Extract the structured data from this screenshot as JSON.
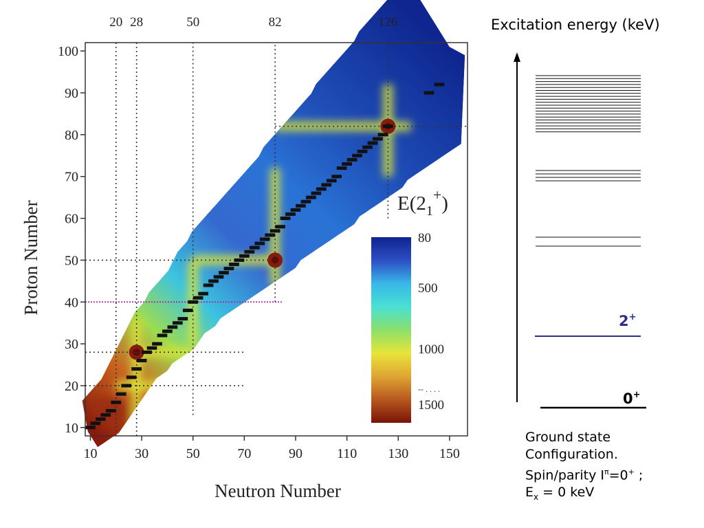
{
  "chart_data": [
    {
      "type": "heatmap",
      "title": "",
      "xlabel": "Neutron Number",
      "ylabel": "Proton Number",
      "xlim": [
        8,
        157
      ],
      "ylim": [
        8,
        102
      ],
      "x_ticks": [
        10,
        30,
        50,
        70,
        90,
        110,
        130,
        150
      ],
      "y_ticks": [
        10,
        20,
        30,
        40,
        50,
        60,
        70,
        80,
        90,
        100
      ],
      "magic_numbers_top": [
        "20",
        "28",
        "50",
        "82",
        "126"
      ],
      "magic_lines": [
        {
          "axis": "x",
          "value": 20,
          "y_range": [
            8,
            102
          ]
        },
        {
          "axis": "x",
          "value": 28,
          "y_range": [
            8,
            102
          ]
        },
        {
          "axis": "x",
          "value": 50,
          "y_range": [
            13,
            102
          ]
        },
        {
          "axis": "x",
          "value": 82,
          "y_range": [
            40,
            102
          ]
        },
        {
          "axis": "x",
          "value": 126,
          "y_range": [
            60,
            102
          ]
        },
        {
          "axis": "y",
          "value": 20,
          "x_range": [
            8,
            70
          ]
        },
        {
          "axis": "y",
          "value": 28,
          "x_range": [
            8,
            70
          ]
        },
        {
          "axis": "y",
          "value": 50,
          "x_range": [
            8,
            82
          ]
        },
        {
          "axis": "y",
          "value": 82,
          "x_range": [
            82,
            157
          ]
        }
      ],
      "highlight_line": {
        "axis": "y",
        "value": 40,
        "x_range": [
          8,
          85
        ],
        "color": "#b0209a"
      },
      "grid": false,
      "colorbar": {
        "title_main": "E(2",
        "title_sub": "1",
        "title_sup": "+",
        "title_end": ")",
        "tick_labels": [
          "80",
          "500",
          "1000",
          "1500"
        ],
        "tick_fractions": [
          0.0,
          0.27,
          0.6,
          0.9
        ],
        "dashed_mark": "-- . . . .",
        "colors": [
          "#10238f",
          "#2d4fc4",
          "#38b7e8",
          "#49e0d4",
          "#8be06a",
          "#e8e43a",
          "#e0a533",
          "#b7581f",
          "#7a1408"
        ]
      },
      "doubly_magic": [
        {
          "x": 28,
          "y": 28
        },
        {
          "x": 82,
          "y": 50
        },
        {
          "x": 126,
          "y": 82
        }
      ],
      "valley_of_stability": [
        [
          10,
          10
        ],
        [
          12,
          11
        ],
        [
          14,
          12
        ],
        [
          16,
          13
        ],
        [
          18,
          14
        ],
        [
          20,
          16
        ],
        [
          22,
          18
        ],
        [
          24,
          20
        ],
        [
          26,
          22
        ],
        [
          28,
          24
        ],
        [
          30,
          26
        ],
        [
          32,
          28
        ],
        [
          34,
          29
        ],
        [
          36,
          30
        ],
        [
          38,
          32
        ],
        [
          40,
          33
        ],
        [
          42,
          34
        ],
        [
          44,
          35
        ],
        [
          46,
          36
        ],
        [
          48,
          38
        ],
        [
          50,
          40
        ],
        [
          52,
          41
        ],
        [
          54,
          42
        ],
        [
          56,
          44
        ],
        [
          58,
          45
        ],
        [
          60,
          46
        ],
        [
          62,
          47
        ],
        [
          64,
          48
        ],
        [
          66,
          49
        ],
        [
          68,
          50
        ],
        [
          70,
          51
        ],
        [
          72,
          52
        ],
        [
          74,
          53
        ],
        [
          76,
          54
        ],
        [
          78,
          55
        ],
        [
          80,
          56
        ],
        [
          82,
          57
        ],
        [
          84,
          58
        ],
        [
          86,
          60
        ],
        [
          88,
          61
        ],
        [
          90,
          62
        ],
        [
          92,
          63
        ],
        [
          94,
          64
        ],
        [
          96,
          65
        ],
        [
          98,
          66
        ],
        [
          100,
          67
        ],
        [
          102,
          68
        ],
        [
          104,
          69
        ],
        [
          106,
          70
        ],
        [
          108,
          72
        ],
        [
          110,
          73
        ],
        [
          112,
          74
        ],
        [
          114,
          75
        ],
        [
          116,
          76
        ],
        [
          118,
          77
        ],
        [
          120,
          78
        ],
        [
          122,
          79
        ],
        [
          124,
          80
        ],
        [
          126,
          82
        ],
        [
          142,
          90
        ],
        [
          146,
          92
        ]
      ]
    },
    {
      "type": "level-scheme",
      "title": "Excitation energy (keV)",
      "ground_state": {
        "label": "0",
        "label_sup": "+",
        "energy": 0
      },
      "first_excited": {
        "label": "2",
        "label_sup": "+",
        "color": "#2b2f8a"
      },
      "higher_level_groups": [
        {
          "count": 2
        },
        {
          "count": 4
        },
        {
          "count": 20
        }
      ],
      "note": {
        "line1": "Ground state",
        "line2": "Configuration.",
        "line3_a": "Spin/parity I",
        "line3_sup": "π",
        "line3_b": "=0",
        "line3_sup2": "+",
        "line3_c": " ;",
        "line4_a": "E",
        "line4_sub": "x",
        "line4_b": " = 0 keV"
      }
    }
  ]
}
